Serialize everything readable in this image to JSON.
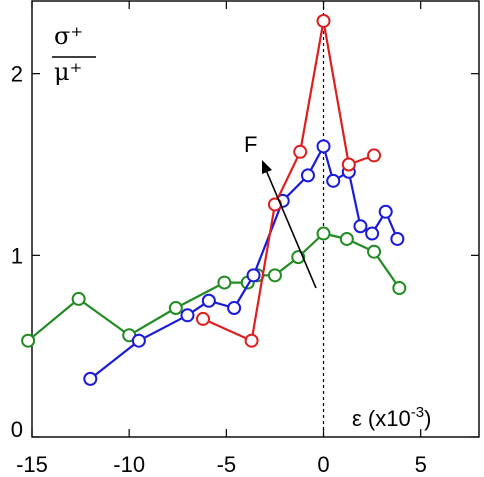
{
  "chart_data": {
    "type": "line",
    "xlim": [
      -15,
      8
    ],
    "ylim": [
      0,
      2.4
    ],
    "x_ticks": [
      -15,
      -10,
      -5,
      0,
      5
    ],
    "x_tick_labels": [
      "-15",
      "-10",
      "-5",
      "0",
      "5"
    ],
    "y_ticks": [
      0,
      1,
      2
    ],
    "y_tick_labels": [
      "0",
      "1",
      "2"
    ],
    "y_label_numerator": "σ⁺",
    "y_label_denominator": "μ⁺",
    "x_label": "ε (x10",
    "x_label_exponent": "-3",
    "x_label_close": ")",
    "arrow_annotation": "F",
    "vertical_reference": {
      "x": 0,
      "style": "dashed"
    },
    "grid": false,
    "series": [
      {
        "color": "#228B22",
        "x": [
          -15.2,
          -12.6,
          -10.0,
          -7.6,
          -5.1,
          -3.9,
          -3.4,
          -2.5,
          -1.3,
          0.0,
          1.2,
          2.6,
          3.9
        ],
        "y": [
          0.53,
          0.76,
          0.56,
          0.71,
          0.85,
          0.85,
          0.89,
          0.89,
          0.99,
          1.12,
          1.09,
          1.02,
          0.82
        ]
      },
      {
        "color": "#1a1adb",
        "x": [
          -12.0,
          -9.5,
          -7.0,
          -5.9,
          -4.6,
          -3.6,
          -2.1,
          -0.8,
          0.0,
          0.5,
          1.3,
          1.9,
          2.5,
          3.2,
          3.8
        ],
        "y": [
          0.32,
          0.53,
          0.67,
          0.75,
          0.71,
          0.89,
          1.3,
          1.44,
          1.6,
          1.41,
          1.46,
          1.16,
          1.12,
          1.24,
          1.09
        ]
      },
      {
        "color": "#dd1f1f",
        "x": [
          -6.2,
          -3.7,
          -2.5,
          -1.2,
          0.0,
          1.3,
          2.6
        ],
        "y": [
          0.65,
          0.53,
          1.28,
          1.57,
          2.29,
          1.5,
          1.55
        ]
      }
    ]
  }
}
